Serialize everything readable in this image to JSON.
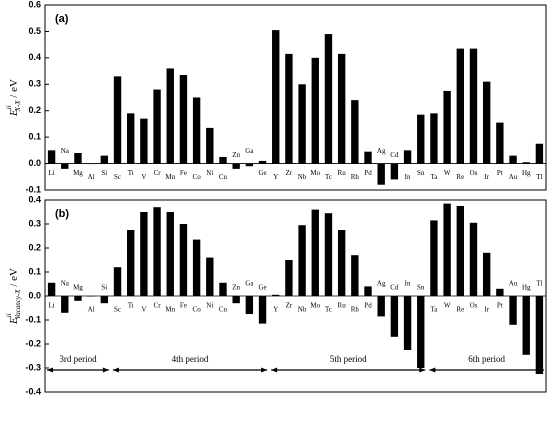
{
  "chart_data": [
    {
      "type": "bar",
      "panel_label": "(a)",
      "ylabel": {
        "main": "E",
        "sup": "ii",
        "sub": "X-X",
        "unit": " / eV"
      },
      "categories": [
        "Li",
        "Na",
        "Mg",
        "Al",
        "Si",
        "Sc",
        "Ti",
        "V",
        "Cr",
        "Mn",
        "Fe",
        "Co",
        "Ni",
        "Cu",
        "Zn",
        "Ga",
        "Ge",
        "Y",
        "Zr",
        "Nb",
        "Mo",
        "Tc",
        "Ru",
        "Rh",
        "Pd",
        "Ag",
        "Cd",
        "In",
        "Sn",
        "Ta",
        "W",
        "Re",
        "Os",
        "Ir",
        "Pt",
        "Au",
        "Hg",
        "Tl"
      ],
      "values": [
        0.05,
        -0.02,
        0.04,
        0.0,
        0.03,
        0.33,
        0.19,
        0.17,
        0.28,
        0.36,
        0.335,
        0.25,
        0.135,
        0.025,
        -0.02,
        -0.01,
        0.01,
        0.505,
        0.415,
        0.3,
        0.4,
        0.49,
        0.415,
        0.24,
        0.045,
        -0.08,
        -0.06,
        0.05,
        0.185,
        0.19,
        0.275,
        0.435,
        0.435,
        0.31,
        0.155,
        0.03,
        0.005,
        0.075
      ],
      "color": "#000000",
      "ylim": [
        -0.1,
        0.6
      ],
      "yticks": [
        -0.1,
        {
          "value": 0,
          "label": "0.0"
        },
        0.1,
        0.2,
        0.3,
        0.4,
        0.5,
        0.6
      ]
    },
    {
      "type": "bar",
      "panel_label": "(b)",
      "ylabel": {
        "main": "E",
        "sup": "ii",
        "sub": "Vacancy-X",
        "unit": " / eV"
      },
      "categories": [
        "Li",
        "Na",
        "Mg",
        "Al",
        "Si",
        "Sc",
        "Ti",
        "V",
        "Cr",
        "Mn",
        "Fe",
        "Co",
        "Ni",
        "Cu",
        "Zn",
        "Ga",
        "Ge",
        "Y",
        "Zr",
        "Nb",
        "Mo",
        "Tc",
        "Ru",
        "Rh",
        "Pd",
        "Ag",
        "Cd",
        "In",
        "Sn",
        "Ta",
        "W",
        "Re",
        "Os",
        "Ir",
        "Pt",
        "Au",
        "Hg",
        "Tl"
      ],
      "values": [
        0.055,
        -0.07,
        -0.02,
        0.0,
        -0.03,
        0.12,
        0.275,
        0.35,
        0.37,
        0.35,
        0.3,
        0.235,
        0.16,
        0.055,
        -0.03,
        -0.075,
        -0.115,
        0.005,
        0.15,
        0.295,
        0.36,
        0.345,
        0.275,
        0.17,
        0.04,
        -0.085,
        -0.17,
        -0.225,
        -0.3,
        0.315,
        0.385,
        0.375,
        0.305,
        0.18,
        0.03,
        -0.12,
        -0.245,
        -0.325
      ],
      "color": "#000000",
      "ylim": [
        -0.4,
        0.4
      ],
      "yticks": [
        -0.4,
        -0.3,
        -0.2,
        -0.1,
        {
          "value": 0,
          "label": "0.0"
        },
        0.1,
        0.2,
        0.3,
        0.4
      ],
      "periods": [
        "3rd period",
        "4th period",
        "5th period",
        "6th period"
      ]
    }
  ]
}
